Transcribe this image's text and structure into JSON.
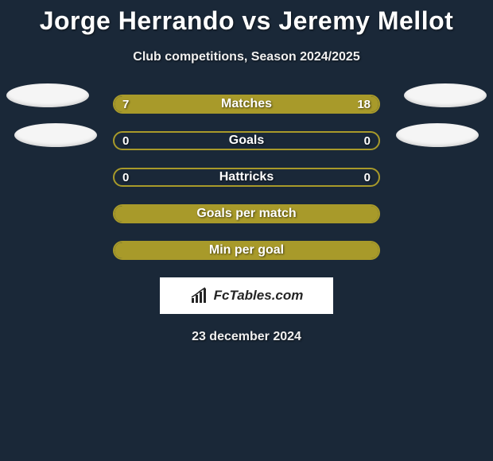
{
  "title": "Jorge Herrando vs Jeremy Mellot",
  "subtitle": "Club competitions, Season 2024/2025",
  "date": "23 december 2024",
  "logo_text": "FcTables.com",
  "colors": {
    "background": "#1a2838",
    "accent": "#a89a2a",
    "avatar": "#f5f5f5",
    "logo_bg": "#ffffff",
    "logo_text": "#252525"
  },
  "stats": [
    {
      "label": "Matches",
      "left_val": "7",
      "right_val": "18",
      "left_fill_pct": 28,
      "right_fill_pct": 72,
      "left_color": "#a89a2a",
      "right_color": "#a89a2a",
      "border_color": "#a89a2a"
    },
    {
      "label": "Goals",
      "left_val": "0",
      "right_val": "0",
      "left_fill_pct": 0,
      "right_fill_pct": 0,
      "left_color": "#a89a2a",
      "right_color": "#a89a2a",
      "border_color": "#a89a2a"
    },
    {
      "label": "Hattricks",
      "left_val": "0",
      "right_val": "0",
      "left_fill_pct": 0,
      "right_fill_pct": 0,
      "left_color": "#a89a2a",
      "right_color": "#a89a2a",
      "border_color": "#a89a2a"
    },
    {
      "label": "Goals per match",
      "left_val": "",
      "right_val": "",
      "left_fill_pct": 100,
      "right_fill_pct": 0,
      "left_color": "#a89a2a",
      "right_color": "#a89a2a",
      "border_color": "#a89a2a"
    },
    {
      "label": "Min per goal",
      "left_val": "",
      "right_val": "",
      "left_fill_pct": 100,
      "right_fill_pct": 0,
      "left_color": "#a89a2a",
      "right_color": "#a89a2a",
      "border_color": "#a89a2a"
    }
  ]
}
